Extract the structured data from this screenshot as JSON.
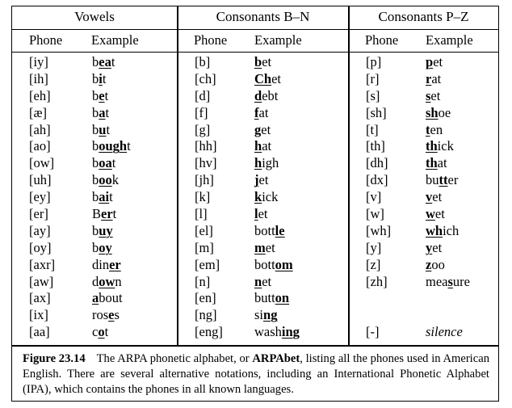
{
  "sections": [
    {
      "title": "Vowels",
      "phone_header": "Phone",
      "example_header": "Example",
      "rows": [
        {
          "phone": "[iy]",
          "pre": "b",
          "bold": "ea",
          "post": "t"
        },
        {
          "phone": "[ih]",
          "pre": "b",
          "bold": "i",
          "post": "t"
        },
        {
          "phone": "[eh]",
          "pre": "b",
          "bold": "e",
          "post": "t"
        },
        {
          "phone": "[æ]",
          "pre": "b",
          "bold": "a",
          "post": "t"
        },
        {
          "phone": "[ah]",
          "pre": "b",
          "bold": "u",
          "post": "t"
        },
        {
          "phone": "[ao]",
          "pre": "b",
          "bold": "ough",
          "post": "t"
        },
        {
          "phone": "[ow]",
          "pre": "b",
          "bold": "oa",
          "post": "t"
        },
        {
          "phone": "[uh]",
          "pre": "b",
          "bold": "oo",
          "post": "k"
        },
        {
          "phone": "[ey]",
          "pre": "b",
          "bold": "ai",
          "post": "t"
        },
        {
          "phone": "[er]",
          "pre": "B",
          "bold": "er",
          "post": "t"
        },
        {
          "phone": "[ay]",
          "pre": "b",
          "bold": "uy",
          "post": ""
        },
        {
          "phone": "[oy]",
          "pre": "b",
          "bold": "oy",
          "post": ""
        },
        {
          "phone": "[axr]",
          "pre": "din",
          "bold": "er",
          "post": ""
        },
        {
          "phone": "[aw]",
          "pre": "d",
          "bold": "ow",
          "post": "n"
        },
        {
          "phone": "[ax]",
          "pre": "",
          "bold": "a",
          "post": "bout"
        },
        {
          "phone": "[ix]",
          "pre": "ros",
          "bold": "e",
          "post": "s"
        },
        {
          "phone": "[aa]",
          "pre": "c",
          "bold": "o",
          "post": "t"
        }
      ]
    },
    {
      "title": "Consonants B–N",
      "phone_header": "Phone",
      "example_header": "Example",
      "rows": [
        {
          "phone": "[b]",
          "pre": "",
          "bold": "b",
          "post": "et"
        },
        {
          "phone": "[ch]",
          "pre": "",
          "bold": "Ch",
          "post": "et"
        },
        {
          "phone": "[d]",
          "pre": "",
          "bold": "d",
          "post": "ebt"
        },
        {
          "phone": "[f]",
          "pre": "",
          "bold": "f",
          "post": "at"
        },
        {
          "phone": "[g]",
          "pre": "",
          "bold": "g",
          "post": "et"
        },
        {
          "phone": "[hh]",
          "pre": "",
          "bold": "h",
          "post": "at"
        },
        {
          "phone": "[hv]",
          "pre": "",
          "bold": "h",
          "post": "igh"
        },
        {
          "phone": "[jh]",
          "pre": "",
          "bold": "j",
          "post": "et"
        },
        {
          "phone": "[k]",
          "pre": "",
          "bold": "k",
          "post": "ick"
        },
        {
          "phone": "[l]",
          "pre": "",
          "bold": "l",
          "post": "et"
        },
        {
          "phone": "[el]",
          "pre": "bott",
          "bold": "le",
          "post": ""
        },
        {
          "phone": "[m]",
          "pre": "",
          "bold": "m",
          "post": "et"
        },
        {
          "phone": "[em]",
          "pre": "bott",
          "bold": "om",
          "post": ""
        },
        {
          "phone": "[n]",
          "pre": "",
          "bold": "n",
          "post": "et"
        },
        {
          "phone": "[en]",
          "pre": "butt",
          "bold": "on",
          "post": ""
        },
        {
          "phone": "[ng]",
          "pre": "si",
          "bold": "ng",
          "post": ""
        },
        {
          "phone": "[eng]",
          "pre": "wash",
          "bold": "ing",
          "post": ""
        }
      ]
    },
    {
      "title": "Consonants P–Z",
      "phone_header": "Phone",
      "example_header": "Example",
      "rows": [
        {
          "phone": "[p]",
          "pre": "",
          "bold": "p",
          "post": "et"
        },
        {
          "phone": "[r]",
          "pre": "",
          "bold": "r",
          "post": "at"
        },
        {
          "phone": "[s]",
          "pre": "",
          "bold": "s",
          "post": "et"
        },
        {
          "phone": "[sh]",
          "pre": "",
          "bold": "sh",
          "post": "oe"
        },
        {
          "phone": "[t]",
          "pre": "",
          "bold": "t",
          "post": "en"
        },
        {
          "phone": "[th]",
          "pre": "",
          "bold": "th",
          "post": "ick"
        },
        {
          "phone": "[dh]",
          "pre": "",
          "bold": "th",
          "post": "at"
        },
        {
          "phone": "[dx]",
          "pre": "bu",
          "bold": "tt",
          "post": "er"
        },
        {
          "phone": "[v]",
          "pre": "",
          "bold": "v",
          "post": "et"
        },
        {
          "phone": "[w]",
          "pre": "",
          "bold": "w",
          "post": "et"
        },
        {
          "phone": "[wh]",
          "pre": "",
          "bold": "wh",
          "post": "ich"
        },
        {
          "phone": "[y]",
          "pre": "",
          "bold": "y",
          "post": "et"
        },
        {
          "phone": "[z]",
          "pre": "",
          "bold": "z",
          "post": "oo"
        },
        {
          "phone": "[zh]",
          "pre": "mea",
          "bold": "s",
          "post": "ure"
        },
        {
          "phone": "",
          "pre": "",
          "bold": "",
          "post": ""
        },
        {
          "phone": "",
          "pre": "",
          "bold": "",
          "post": ""
        },
        {
          "phone": "[-]",
          "pre": "",
          "bold": "",
          "post": "",
          "italic": "silence"
        }
      ]
    }
  ],
  "caption": {
    "number": "Figure 23.14",
    "text_before": "The ARPA phonetic alphabet, or ",
    "bold_term": "ARPAbet",
    "text_after": ", listing all the phones used in American English. There are several alternative notations, including an International Phonetic Alphabet (IPA), which contains the phones in all known languages."
  }
}
